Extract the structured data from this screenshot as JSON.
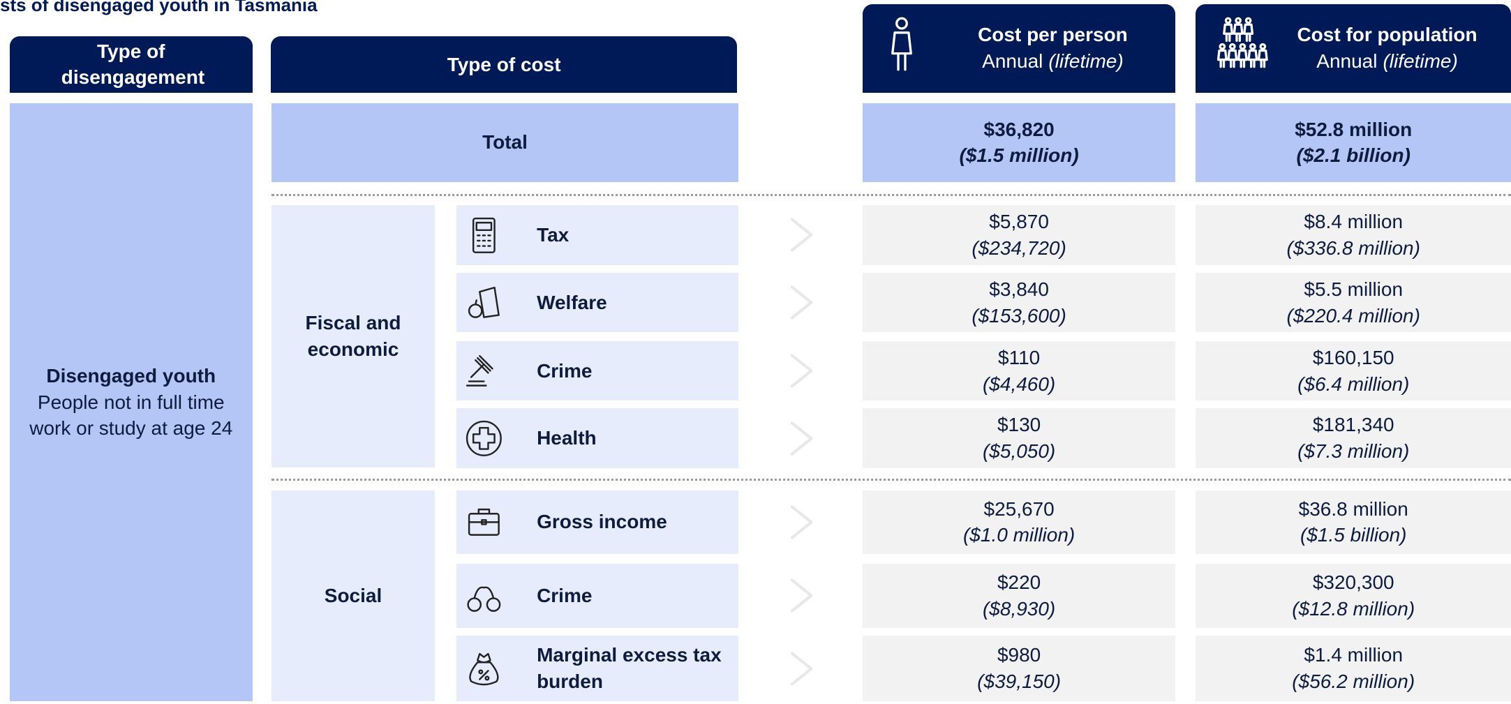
{
  "title": "sts of disengaged youth in Tasmania",
  "headers": {
    "type_of_disengagement": "Type of disengagement",
    "type_of_cost": "Type of cost",
    "cost_per_person": {
      "title": "Cost per person",
      "annual": "Annual",
      "lifetime": "(lifetime)"
    },
    "cost_for_population": {
      "title": "Cost for population",
      "annual": "Annual",
      "lifetime": "(lifetime)"
    }
  },
  "disengagement": {
    "name": "Disengaged youth",
    "description": "People not in full time work or study at age 24"
  },
  "total": {
    "label": "Total",
    "per_person": "$36,820",
    "per_person_lifetime": "($1.5 million)",
    "population": "$52.8 million",
    "population_lifetime": "($2.1 billion)"
  },
  "groups": [
    {
      "name": "Fiscal and economic",
      "rows": [
        {
          "label": "Tax",
          "per_person": "$5,870",
          "per_person_lifetime": "($234,720)",
          "population": "$8.4 million",
          "population_lifetime": "($336.8 million)"
        },
        {
          "label": "Welfare",
          "per_person": "$3,840",
          "per_person_lifetime": "($153,600)",
          "population": "$5.5 million",
          "population_lifetime": "($220.4 million)"
        },
        {
          "label": "Crime",
          "per_person": "$110",
          "per_person_lifetime": "($4,460)",
          "population": "$160,150",
          "population_lifetime": "($6.4 million)"
        },
        {
          "label": "Health",
          "per_person": "$130",
          "per_person_lifetime": "($5,050)",
          "population": "$181,340",
          "population_lifetime": "($7.3 million)"
        }
      ]
    },
    {
      "name": "Social",
      "rows": [
        {
          "label": "Gross income",
          "per_person": "$25,670",
          "per_person_lifetime": "($1.0 million)",
          "population": "$36.8 million",
          "population_lifetime": "($1.5 billion)"
        },
        {
          "label": "Crime",
          "per_person": "$220",
          "per_person_lifetime": "($8,930)",
          "population": "$320,300",
          "population_lifetime": "($12.8 million)"
        },
        {
          "label": "Marginal excess tax burden",
          "per_person": "$980",
          "per_person_lifetime": "($39,150)",
          "population": "$1.4 million",
          "population_lifetime": "($56.2 million)"
        }
      ]
    }
  ]
}
